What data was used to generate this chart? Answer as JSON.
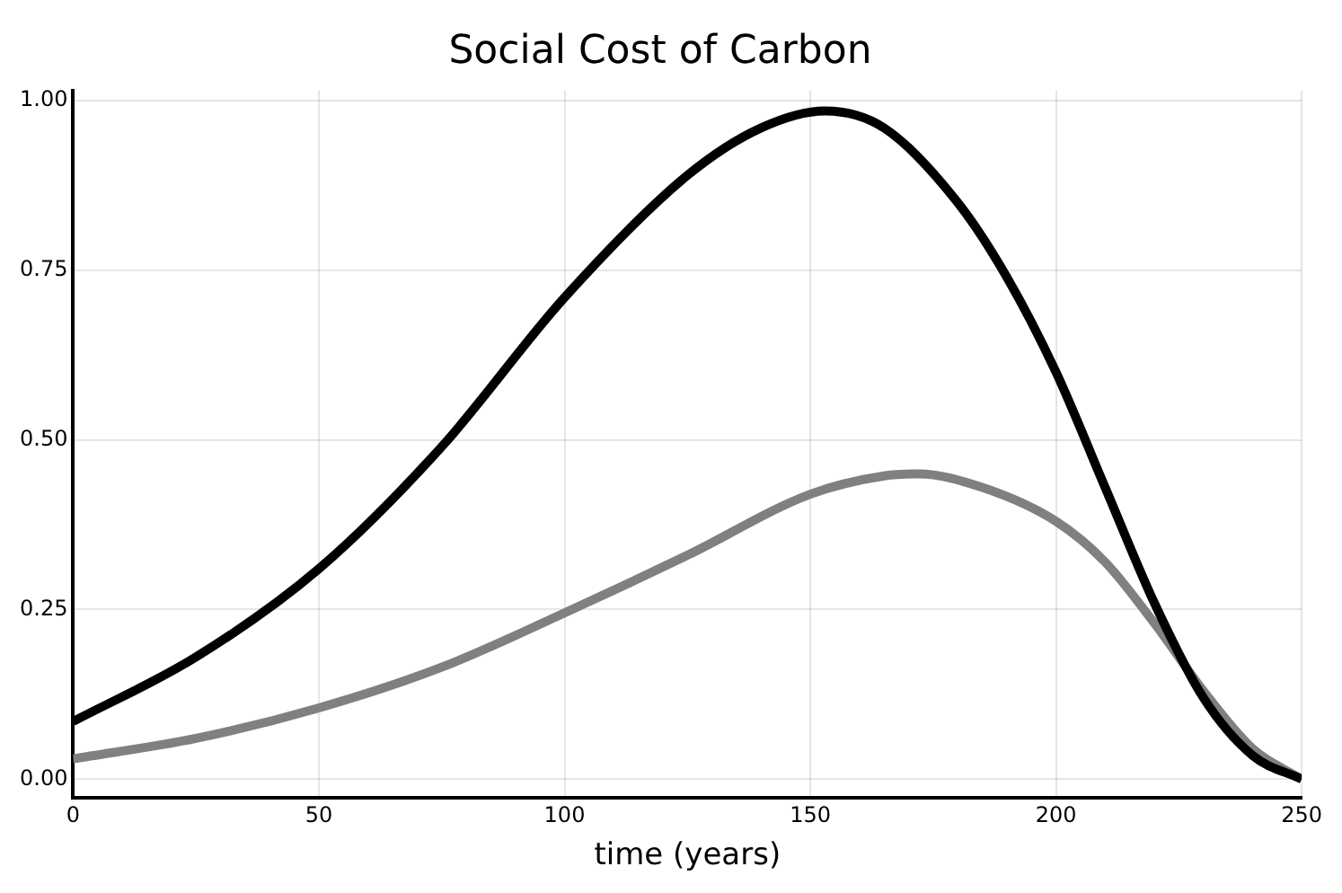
{
  "chart_data": {
    "type": "line",
    "title": "Social Cost of Carbon",
    "xlabel": "time (years)",
    "series": [
      {
        "color": "#000000",
        "x": [
          0,
          25,
          50,
          75,
          100,
          125,
          140,
          153,
          165,
          180,
          190,
          200,
          210,
          220,
          230,
          240,
          250
        ],
        "values": [
          0.085,
          0.18,
          0.31,
          0.49,
          0.71,
          0.89,
          0.96,
          0.985,
          0.96,
          0.85,
          0.74,
          0.6,
          0.43,
          0.26,
          0.12,
          0.035,
          0
        ]
      },
      {
        "color": "#808080",
        "x": [
          0,
          25,
          50,
          75,
          100,
          125,
          150,
          165,
          172,
          185,
          200,
          210,
          220,
          230,
          240,
          250
        ],
        "values": [
          0.03,
          0.06,
          0.105,
          0.165,
          0.245,
          0.33,
          0.42,
          0.447,
          0.45,
          0.43,
          0.38,
          0.32,
          0.23,
          0.13,
          0.045,
          0
        ]
      }
    ],
    "xlim": [
      0,
      250
    ],
    "xticks": [
      0,
      50,
      100,
      150,
      200,
      250
    ],
    "ylim": [
      -0.028,
      1.015
    ],
    "yticks": [
      {
        "value": 0,
        "label": "0.00"
      },
      {
        "value": 0.25,
        "label": "0.25"
      },
      {
        "value": 0.5,
        "label": "0.50"
      },
      {
        "value": 0.75,
        "label": "0.75"
      },
      {
        "value": 1,
        "label": "1.00"
      }
    ],
    "grid": true,
    "legend": false,
    "line_style": "solid",
    "marker": "none"
  }
}
